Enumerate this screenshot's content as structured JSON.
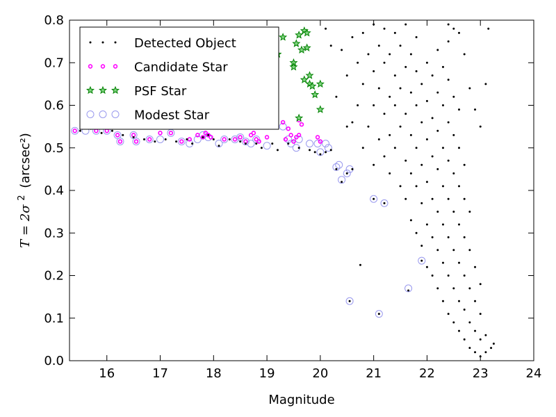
{
  "chart_data": {
    "type": "scatter",
    "xlabel": "Magnitude",
    "ylabel_prefix": "T = 2σ",
    "ylabel_units": "(arcsec²)",
    "xlim": [
      15.3,
      24.0
    ],
    "ylim": [
      0.0,
      0.8
    ],
    "xticks": [
      "16",
      "17",
      "18",
      "19",
      "20",
      "21",
      "22",
      "23",
      "24"
    ],
    "xtick_values": [
      16,
      17,
      18,
      19,
      20,
      21,
      22,
      23,
      24
    ],
    "yticks": [
      "0.0",
      "0.1",
      "0.2",
      "0.3",
      "0.4",
      "0.5",
      "0.6",
      "0.7",
      "0.8"
    ],
    "ytick_values": [
      0.0,
      0.1,
      0.2,
      0.3,
      0.4,
      0.5,
      0.6,
      0.7,
      0.8
    ],
    "grid": false,
    "legend_position": "top-left",
    "series": [
      {
        "name": "Detected Object",
        "marker": "dot",
        "color": "#000000",
        "points": [
          [
            15.5,
            0.54
          ],
          [
            15.7,
            0.545
          ],
          [
            15.9,
            0.535
          ],
          [
            16.1,
            0.54
          ],
          [
            16.3,
            0.53
          ],
          [
            16.5,
            0.525
          ],
          [
            16.7,
            0.52
          ],
          [
            16.9,
            0.515
          ],
          [
            17.1,
            0.52
          ],
          [
            17.3,
            0.515
          ],
          [
            17.5,
            0.52
          ],
          [
            17.6,
            0.51
          ],
          [
            17.8,
            0.525
          ],
          [
            17.9,
            0.53
          ],
          [
            18.0,
            0.52
          ],
          [
            18.1,
            0.505
          ],
          [
            18.3,
            0.52
          ],
          [
            18.5,
            0.515
          ],
          [
            18.6,
            0.51
          ],
          [
            18.8,
            0.51
          ],
          [
            18.9,
            0.5
          ],
          [
            19.1,
            0.51
          ],
          [
            19.2,
            0.495
          ],
          [
            19.4,
            0.51
          ],
          [
            19.6,
            0.5
          ],
          [
            19.8,
            0.495
          ],
          [
            19.9,
            0.49
          ],
          [
            20.0,
            0.485
          ],
          [
            20.1,
            0.49
          ],
          [
            20.2,
            0.495
          ],
          [
            20.3,
            0.45
          ],
          [
            20.4,
            0.42
          ],
          [
            20.5,
            0.44
          ],
          [
            20.6,
            0.45
          ],
          [
            20.55,
            0.14
          ],
          [
            21.0,
            0.38
          ],
          [
            21.1,
            0.11
          ],
          [
            21.2,
            0.37
          ],
          [
            21.9,
            0.235
          ],
          [
            21.65,
            0.165
          ],
          [
            20.75,
            0.225
          ],
          [
            20.1,
            0.78
          ],
          [
            20.2,
            0.74
          ],
          [
            20.3,
            0.62
          ],
          [
            20.4,
            0.73
          ],
          [
            20.5,
            0.55
          ],
          [
            20.5,
            0.67
          ],
          [
            20.6,
            0.56
          ],
          [
            20.6,
            0.76
          ],
          [
            20.7,
            0.6
          ],
          [
            20.7,
            0.7
          ],
          [
            20.8,
            0.5
          ],
          [
            20.8,
            0.65
          ],
          [
            20.8,
            0.77
          ],
          [
            20.9,
            0.55
          ],
          [
            20.9,
            0.72
          ],
          [
            21.0,
            0.46
          ],
          [
            21.0,
            0.6
          ],
          [
            21.0,
            0.68
          ],
          [
            21.0,
            0.79
          ],
          [
            21.1,
            0.52
          ],
          [
            21.1,
            0.64
          ],
          [
            21.1,
            0.74
          ],
          [
            21.2,
            0.48
          ],
          [
            21.2,
            0.58
          ],
          [
            21.2,
            0.7
          ],
          [
            21.2,
            0.78
          ],
          [
            21.3,
            0.44
          ],
          [
            21.3,
            0.53
          ],
          [
            21.3,
            0.62
          ],
          [
            21.3,
            0.72
          ],
          [
            21.4,
            0.5
          ],
          [
            21.4,
            0.6
          ],
          [
            21.4,
            0.67
          ],
          [
            21.4,
            0.77
          ],
          [
            21.5,
            0.41
          ],
          [
            21.5,
            0.55
          ],
          [
            21.5,
            0.64
          ],
          [
            21.5,
            0.74
          ],
          [
            21.6,
            0.38
          ],
          [
            21.6,
            0.47
          ],
          [
            21.6,
            0.58
          ],
          [
            21.6,
            0.69
          ],
          [
            21.6,
            0.79
          ],
          [
            21.7,
            0.33
          ],
          [
            21.7,
            0.44
          ],
          [
            21.7,
            0.53
          ],
          [
            21.7,
            0.63
          ],
          [
            21.7,
            0.72
          ],
          [
            21.8,
            0.3
          ],
          [
            21.8,
            0.41
          ],
          [
            21.8,
            0.5
          ],
          [
            21.8,
            0.6
          ],
          [
            21.8,
            0.68
          ],
          [
            21.8,
            0.76
          ],
          [
            21.9,
            0.27
          ],
          [
            21.9,
            0.37
          ],
          [
            21.9,
            0.46
          ],
          [
            21.9,
            0.56
          ],
          [
            21.9,
            0.65
          ],
          [
            22.0,
            0.22
          ],
          [
            22.0,
            0.32
          ],
          [
            22.0,
            0.42
          ],
          [
            22.0,
            0.52
          ],
          [
            22.0,
            0.61
          ],
          [
            22.0,
            0.7
          ],
          [
            22.1,
            0.2
          ],
          [
            22.1,
            0.29
          ],
          [
            22.1,
            0.38
          ],
          [
            22.1,
            0.48
          ],
          [
            22.1,
            0.57
          ],
          [
            22.1,
            0.67
          ],
          [
            22.2,
            0.17
          ],
          [
            22.2,
            0.26
          ],
          [
            22.2,
            0.35
          ],
          [
            22.2,
            0.45
          ],
          [
            22.2,
            0.54
          ],
          [
            22.2,
            0.63
          ],
          [
            22.2,
            0.73
          ],
          [
            22.3,
            0.14
          ],
          [
            22.3,
            0.23
          ],
          [
            22.3,
            0.32
          ],
          [
            22.3,
            0.41
          ],
          [
            22.3,
            0.5
          ],
          [
            22.3,
            0.6
          ],
          [
            22.3,
            0.69
          ],
          [
            22.4,
            0.11
          ],
          [
            22.4,
            0.2
          ],
          [
            22.4,
            0.29
          ],
          [
            22.4,
            0.38
          ],
          [
            22.4,
            0.47
          ],
          [
            22.4,
            0.56
          ],
          [
            22.4,
            0.66
          ],
          [
            22.4,
            0.75
          ],
          [
            22.5,
            0.09
          ],
          [
            22.5,
            0.17
          ],
          [
            22.5,
            0.26
          ],
          [
            22.5,
            0.35
          ],
          [
            22.5,
            0.44
          ],
          [
            22.5,
            0.53
          ],
          [
            22.5,
            0.62
          ],
          [
            22.6,
            0.07
          ],
          [
            22.6,
            0.14
          ],
          [
            22.6,
            0.23
          ],
          [
            22.6,
            0.32
          ],
          [
            22.6,
            0.41
          ],
          [
            22.6,
            0.5
          ],
          [
            22.6,
            0.59
          ],
          [
            22.7,
            0.05
          ],
          [
            22.7,
            0.12
          ],
          [
            22.7,
            0.2
          ],
          [
            22.7,
            0.29
          ],
          [
            22.7,
            0.38
          ],
          [
            22.7,
            0.46
          ],
          [
            22.8,
            0.03
          ],
          [
            22.8,
            0.09
          ],
          [
            22.8,
            0.17
          ],
          [
            22.8,
            0.26
          ],
          [
            22.8,
            0.35
          ],
          [
            22.9,
            0.02
          ],
          [
            22.9,
            0.07
          ],
          [
            22.9,
            0.14
          ],
          [
            22.9,
            0.22
          ],
          [
            23.0,
            0.01
          ],
          [
            23.0,
            0.05
          ],
          [
            23.0,
            0.11
          ],
          [
            23.0,
            0.18
          ],
          [
            23.1,
            0.02
          ],
          [
            23.1,
            0.06
          ],
          [
            23.2,
            0.03
          ],
          [
            23.25,
            0.04
          ],
          [
            23.1,
            0.65
          ],
          [
            23.15,
            0.78
          ],
          [
            22.4,
            0.79
          ],
          [
            22.6,
            0.77
          ],
          [
            22.7,
            0.72
          ],
          [
            22.8,
            0.64
          ],
          [
            22.9,
            0.59
          ],
          [
            23.0,
            0.55
          ],
          [
            22.5,
            0.78
          ]
        ]
      },
      {
        "name": "Candidate Star",
        "marker": "ring",
        "color": "#ff00ff",
        "points": [
          [
            15.4,
            0.54
          ],
          [
            15.8,
            0.54
          ],
          [
            16.0,
            0.54
          ],
          [
            16.2,
            0.53
          ],
          [
            16.25,
            0.515
          ],
          [
            16.5,
            0.53
          ],
          [
            16.55,
            0.515
          ],
          [
            16.8,
            0.52
          ],
          [
            17.0,
            0.535
          ],
          [
            17.2,
            0.535
          ],
          [
            17.4,
            0.515
          ],
          [
            17.55,
            0.52
          ],
          [
            17.7,
            0.53
          ],
          [
            17.8,
            0.525
          ],
          [
            17.85,
            0.535
          ],
          [
            17.9,
            0.53
          ],
          [
            17.95,
            0.525
          ],
          [
            18.2,
            0.52
          ],
          [
            18.4,
            0.52
          ],
          [
            18.5,
            0.525
          ],
          [
            18.6,
            0.515
          ],
          [
            18.7,
            0.53
          ],
          [
            18.75,
            0.535
          ],
          [
            18.8,
            0.52
          ],
          [
            18.85,
            0.515
          ],
          [
            19.0,
            0.525
          ],
          [
            19.3,
            0.56
          ],
          [
            19.35,
            0.52
          ],
          [
            19.4,
            0.545
          ],
          [
            19.45,
            0.53
          ],
          [
            19.5,
            0.515
          ],
          [
            19.55,
            0.525
          ],
          [
            19.6,
            0.53
          ],
          [
            19.6,
            0.565
          ],
          [
            19.65,
            0.555
          ],
          [
            19.95,
            0.525
          ],
          [
            20.0,
            0.515
          ]
        ]
      },
      {
        "name": "PSF Star",
        "marker": "star",
        "color": "#008000",
        "points": [
          [
            19.2,
            0.72
          ],
          [
            19.3,
            0.76
          ],
          [
            19.5,
            0.7
          ],
          [
            19.5,
            0.69
          ],
          [
            19.55,
            0.745
          ],
          [
            19.6,
            0.765
          ],
          [
            19.65,
            0.73
          ],
          [
            19.7,
            0.775
          ],
          [
            19.75,
            0.77
          ],
          [
            19.75,
            0.735
          ],
          [
            19.8,
            0.67
          ],
          [
            19.8,
            0.65
          ],
          [
            19.85,
            0.645
          ],
          [
            19.9,
            0.625
          ],
          [
            19.7,
            0.66
          ],
          [
            20.0,
            0.59
          ],
          [
            20.0,
            0.65
          ],
          [
            19.6,
            0.57
          ]
        ]
      },
      {
        "name": "Modest Star",
        "marker": "circle",
        "color": "#9999ee",
        "points": [
          [
            15.4,
            0.54
          ],
          [
            15.6,
            0.54
          ],
          [
            15.8,
            0.54
          ],
          [
            16.0,
            0.54
          ],
          [
            16.2,
            0.53
          ],
          [
            16.25,
            0.515
          ],
          [
            16.5,
            0.53
          ],
          [
            16.55,
            0.515
          ],
          [
            16.8,
            0.52
          ],
          [
            17.0,
            0.52
          ],
          [
            17.2,
            0.535
          ],
          [
            17.4,
            0.515
          ],
          [
            17.55,
            0.51
          ],
          [
            17.7,
            0.52
          ],
          [
            17.8,
            0.53
          ],
          [
            17.9,
            0.525
          ],
          [
            18.1,
            0.51
          ],
          [
            18.2,
            0.52
          ],
          [
            18.4,
            0.52
          ],
          [
            18.5,
            0.525
          ],
          [
            18.6,
            0.515
          ],
          [
            18.7,
            0.51
          ],
          [
            18.8,
            0.52
          ],
          [
            19.0,
            0.505
          ],
          [
            19.3,
            0.55
          ],
          [
            19.4,
            0.52
          ],
          [
            19.45,
            0.51
          ],
          [
            19.55,
            0.5
          ],
          [
            19.6,
            0.52
          ],
          [
            19.8,
            0.51
          ],
          [
            19.95,
            0.51
          ],
          [
            20.0,
            0.49
          ],
          [
            20.1,
            0.51
          ],
          [
            20.15,
            0.5
          ],
          [
            20.3,
            0.455
          ],
          [
            20.35,
            0.46
          ],
          [
            20.4,
            0.425
          ],
          [
            20.5,
            0.44
          ],
          [
            20.55,
            0.45
          ],
          [
            20.55,
            0.14
          ],
          [
            21.0,
            0.38
          ],
          [
            21.1,
            0.11
          ],
          [
            21.2,
            0.37
          ],
          [
            21.65,
            0.17
          ],
          [
            21.9,
            0.235
          ]
        ]
      }
    ]
  }
}
